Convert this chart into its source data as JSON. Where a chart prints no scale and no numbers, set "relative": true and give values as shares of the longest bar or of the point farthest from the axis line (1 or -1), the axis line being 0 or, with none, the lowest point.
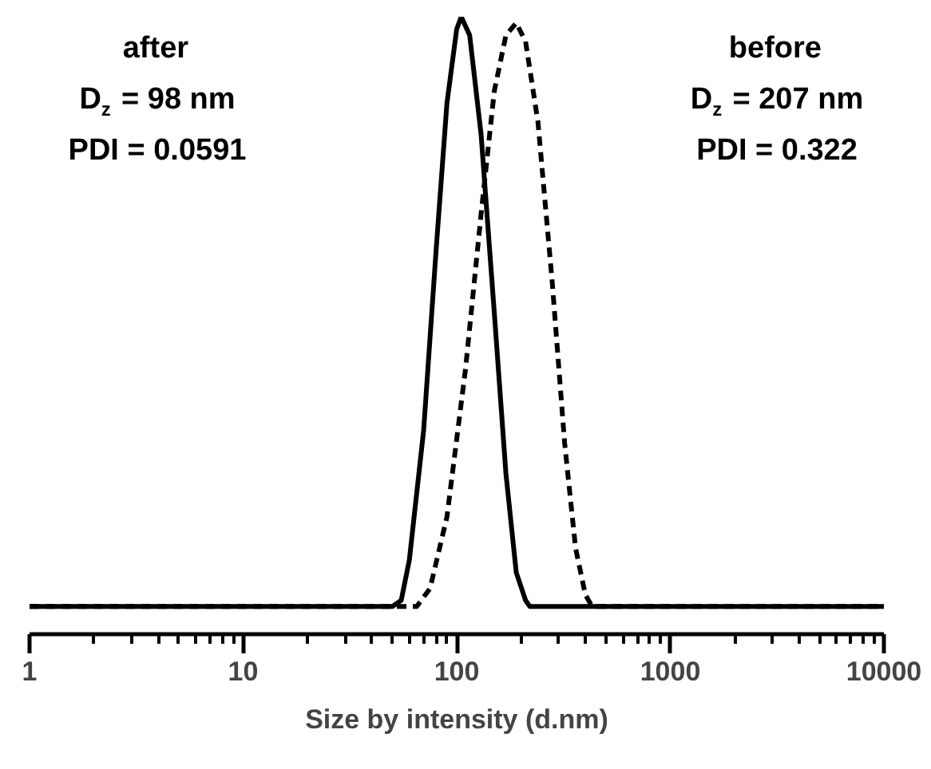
{
  "chart_data": {
    "type": "line",
    "relative": true,
    "log": "x",
    "xlabel": "Size by intensity (d.nm)",
    "xlim": [
      1,
      10000
    ],
    "xticks": [
      1,
      10,
      100,
      1000,
      10000
    ],
    "grid": false,
    "marker": "none",
    "series": [
      {
        "color": "#000000",
        "line_style": "solid",
        "x": [
          1,
          50,
          55,
          60,
          70,
          80,
          90,
          100,
          105,
          115,
          130,
          150,
          170,
          190,
          210,
          220,
          10000
        ],
        "values": [
          0.045,
          0.045,
          0.055,
          0.12,
          0.33,
          0.62,
          0.86,
          0.98,
          1,
          0.97,
          0.81,
          0.52,
          0.26,
          0.1,
          0.055,
          0.045,
          0.045
        ]
      },
      {
        "color": "#000000",
        "line_style": "dashed",
        "x": [
          1,
          65,
          75,
          90,
          110,
          130,
          150,
          170,
          190,
          210,
          240,
          280,
          320,
          360,
          400,
          430,
          10000
        ],
        "values": [
          0.045,
          0.045,
          0.074,
          0.19,
          0.43,
          0.68,
          0.88,
          0.97,
          0.99,
          0.96,
          0.83,
          0.57,
          0.31,
          0.14,
          0.064,
          0.045,
          0.045
        ]
      }
    ],
    "annotations": [
      "after",
      "D$_{z}$ = 98 nm",
      "PDI = 0.0591",
      "before",
      "D$_{z}$ = 207 nm",
      "PDI = 0.322"
    ]
  }
}
